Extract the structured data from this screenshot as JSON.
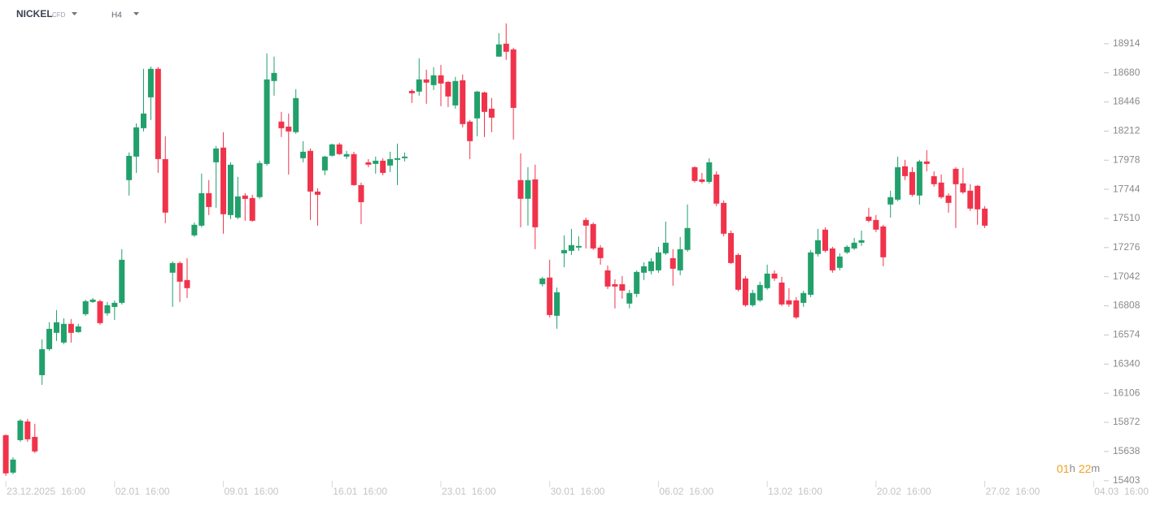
{
  "header": {
    "symbol": "NICKEL",
    "instrument": "CFD",
    "timeframe": "H4"
  },
  "countdown": {
    "hours": "01",
    "h": "h",
    "minutes": "22",
    "m": "m"
  },
  "chart_data": {
    "type": "candlestick",
    "up_color": "#22a06b",
    "down_color": "#f0334b",
    "xlim": [
      -0.8,
      151.2
    ],
    "xticks": [
      {
        "value": 0,
        "label": "23.12.2025  16:00"
      },
      {
        "value": 15,
        "label": "02.01  16:00"
      },
      {
        "value": 30,
        "label": "09.01  16:00"
      },
      {
        "value": 45,
        "label": "16.01  16:00"
      },
      {
        "value": 60,
        "label": "23.01  16:00"
      },
      {
        "value": 75,
        "label": "30.01  16:00"
      },
      {
        "value": 90,
        "label": "06.02  16:00"
      },
      {
        "value": 105,
        "label": "13.02  16:00"
      },
      {
        "value": 120,
        "label": "20.02  16:00"
      },
      {
        "value": 135,
        "label": "27.02  16:00"
      },
      {
        "value": 150,
        "label": "04.03  16:00"
      }
    ],
    "ylim": [
      15350,
      19265
    ],
    "yticks": [
      18914,
      18680,
      18446,
      18212,
      17978,
      17744,
      17510,
      17276,
      17042,
      16808,
      16574,
      16340,
      16106,
      15872,
      15638,
      15403
    ],
    "open": [
      15769,
      15468,
      15729,
      15879,
      15755,
      16251,
      16460,
      16591,
      16513,
      16663,
      16597,
      16741,
      16839,
      16845,
      16748,
      16799,
      16832,
      17818,
      18007,
      18235,
      18483,
      18712,
      17987,
      17074,
      17152,
      17015,
      17374,
      17452,
      17713,
      17961,
      18079,
      17537,
      17517,
      17694,
      17674,
      17681,
      17948,
      18614,
      18288,
      18248,
      18203,
      17994,
      18053,
      17726,
      17896,
      18014,
      18105,
      18007,
      18027,
      17778,
      17961,
      17948,
      17974,
      17935,
      17981,
      17994,
      18535,
      18529,
      18627,
      18581,
      18660,
      18607,
      18418,
      18620,
      18288,
      18314,
      18522,
      18392,
      18810,
      18914,
      18868,
      17818,
      17668,
      17824,
      16982,
      17035,
      16728,
      17230,
      17250,
      17276,
      17498,
      17465,
      17276,
      17093,
      16982,
      16982,
      16826,
      16904,
      17074,
      17087,
      17093,
      17230,
      17191,
      17093,
      17257,
      17922,
      17824,
      17804,
      17863,
      17635,
      17393,
      17217,
      17028,
      16813,
      16852,
      16950,
      17067,
      16995,
      16852,
      16852,
      16832,
      16897,
      17224,
      17420,
      17269,
      17113,
      17237,
      17269,
      17315,
      17524,
      17498,
      17446,
      17622,
      17661,
      17929,
      17883,
      17694,
      17968,
      17850,
      17798,
      17694,
      17909,
      17792,
      17733,
      17772,
      17589
    ],
    "high": [
      15775,
      15592,
      15899,
      15899,
      15860,
      16539,
      16676,
      16774,
      16708,
      16702,
      16663,
      16858,
      16871,
      16858,
      16839,
      16852,
      17263,
      18040,
      18274,
      18712,
      18731,
      18725,
      18170,
      17165,
      17165,
      17191,
      17478,
      17870,
      17818,
      18092,
      18203,
      17961,
      17844,
      17713,
      17700,
      17974,
      18836,
      18810,
      18366,
      18353,
      18549,
      18131,
      18072,
      17752,
      18014,
      18111,
      18118,
      18053,
      18046,
      17798,
      17987,
      18007,
      17994,
      18046,
      18111,
      18040,
      18549,
      18797,
      18705,
      18725,
      18744,
      18614,
      18647,
      18666,
      18301,
      18535,
      18529,
      18477,
      18999,
      19077,
      18881,
      18033,
      17922,
      17942,
      17041,
      17178,
      16956,
      17374,
      17426,
      17367,
      17517,
      17478,
      17296,
      17132,
      17021,
      17048,
      16937,
      17093,
      17158,
      17191,
      17282,
      17485,
      17263,
      17361,
      17622,
      17929,
      17876,
      17994,
      17889,
      17655,
      17413,
      17230,
      17048,
      16937,
      17002,
      17139,
      17093,
      17041,
      16950,
      16878,
      16930,
      17256,
      17426,
      17439,
      17282,
      17230,
      17296,
      17354,
      17413,
      17596,
      17537,
      17459,
      17733,
      18007,
      17981,
      17922,
      17981,
      18059,
      17889,
      17863,
      17713,
      17922,
      17916,
      17785,
      17778,
      17609
    ],
    "low": [
      15442,
      15455,
      15716,
      15716,
      15625,
      16173,
      16447,
      16526,
      16500,
      16513,
      16591,
      16728,
      16832,
      16656,
      16728,
      16695,
      16819,
      17694,
      17876,
      18209,
      18301,
      17876,
      17472,
      16800,
      16839,
      16871,
      17361,
      17439,
      17537,
      17596,
      17387,
      17504,
      17504,
      17491,
      17485,
      17668,
      17935,
      18496,
      18164,
      17863,
      18190,
      17961,
      17498,
      17452,
      17857,
      18007,
      18020,
      17987,
      17772,
      17465,
      17922,
      17870,
      17857,
      17883,
      17778,
      17968,
      18438,
      18496,
      18431,
      18542,
      18412,
      18405,
      18392,
      18242,
      17987,
      18170,
      18164,
      18203,
      18810,
      18784,
      18144,
      17439,
      17452,
      17263,
      16963,
      16715,
      16624,
      17119,
      17217,
      17250,
      17269,
      17256,
      17139,
      16943,
      16787,
      16865,
      16787,
      16878,
      17015,
      17061,
      17074,
      17217,
      16969,
      17054,
      17243,
      17798,
      17791,
      17791,
      17609,
      17367,
      17145,
      16924,
      16800,
      16800,
      16839,
      16937,
      17008,
      16806,
      16800,
      16702,
      16800,
      16878,
      17204,
      17237,
      17074,
      17093,
      17224,
      17256,
      17289,
      17478,
      17400,
      17126,
      17517,
      17648,
      17818,
      17687,
      17622,
      17889,
      17765,
      17668,
      17557,
      17433,
      17707,
      17570,
      17459,
      17433
    ],
    "close": [
      15462,
      15573,
      15886,
      15736,
      15638,
      16460,
      16623,
      16676,
      16663,
      16591,
      16643,
      16845,
      16858,
      16669,
      16813,
      16832,
      17178,
      18013,
      18242,
      18353,
      18712,
      17987,
      17557,
      17152,
      17002,
      16950,
      17459,
      17713,
      17602,
      18072,
      17544,
      17942,
      17687,
      17667,
      17491,
      17955,
      18627,
      18679,
      18235,
      18209,
      18477,
      18046,
      17726,
      17700,
      18007,
      18105,
      18027,
      18027,
      17778,
      17641,
      17942,
      17974,
      17876,
      17987,
      17994,
      18007,
      18516,
      18627,
      18601,
      18660,
      18594,
      18490,
      18614,
      18268,
      18131,
      18529,
      18366,
      18320,
      18908,
      18849,
      18398,
      17668,
      17818,
      17439,
      17028,
      16734,
      16917,
      17256,
      17296,
      17289,
      17452,
      17269,
      17191,
      16963,
      16963,
      16930,
      16911,
      17080,
      17126,
      17165,
      17237,
      17315,
      17106,
      17263,
      17433,
      17811,
      17804,
      17961,
      17629,
      17387,
      17152,
      16937,
      16813,
      16911,
      16976,
      17067,
      17028,
      16819,
      16819,
      16715,
      16911,
      17237,
      17335,
      17250,
      17093,
      17204,
      17282,
      17315,
      17335,
      17491,
      17420,
      17198,
      17681,
      17922,
      17850,
      17700,
      17968,
      17948,
      17785,
      17681,
      17635,
      17785,
      17720,
      17589,
      17583,
      17452
    ]
  }
}
